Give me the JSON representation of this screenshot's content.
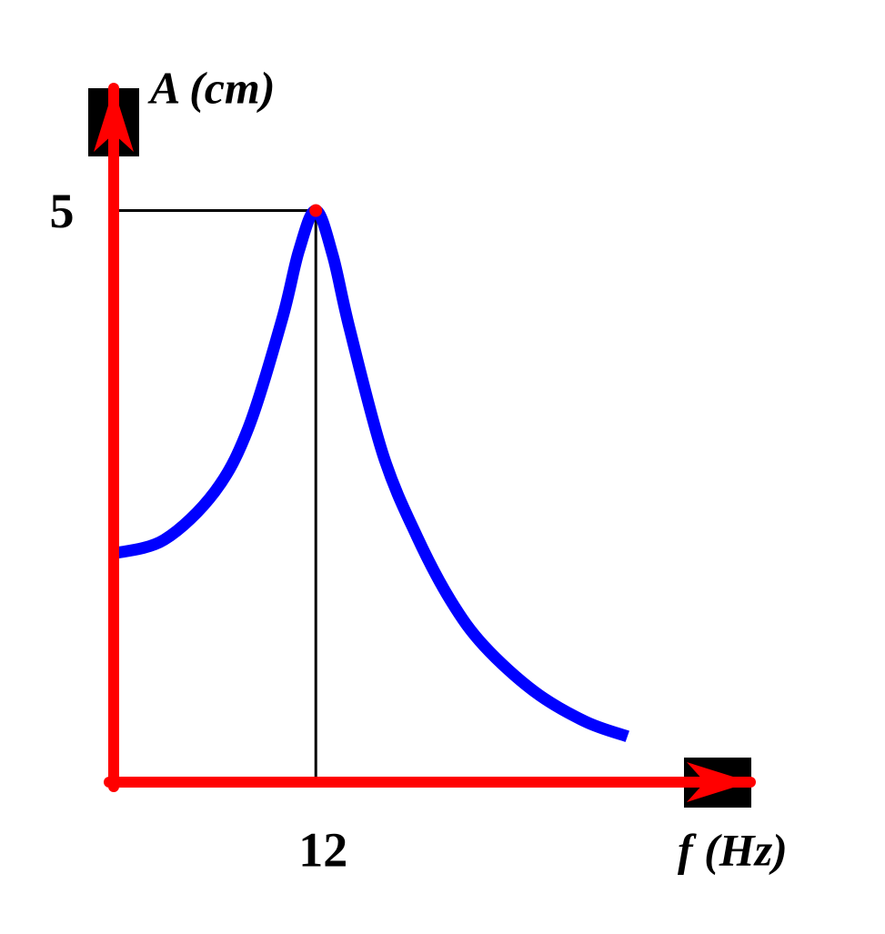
{
  "chart_data": {
    "type": "line",
    "y_label": "A (cm)",
    "x_label": "f (Hz)",
    "x": [
      0,
      3,
      6,
      8,
      10,
      11,
      12,
      13,
      14,
      16,
      18,
      20,
      22,
      25,
      28,
      30.5
    ],
    "series": [
      {
        "color": "#0000ff",
        "values": [
          2.0,
          2.12,
          2.54,
          3.1,
          4.05,
          4.65,
          5,
          4.61,
          3.97,
          2.86,
          2.15,
          1.59,
          1.19,
          0.79,
          0.53,
          0.4
        ]
      }
    ],
    "xlim": [
      0,
      37.8
    ],
    "ylim": [
      0,
      6.07
    ],
    "xticks": [
      12
    ],
    "yticks": [
      5
    ],
    "axis_color": "#ff0000"
  }
}
